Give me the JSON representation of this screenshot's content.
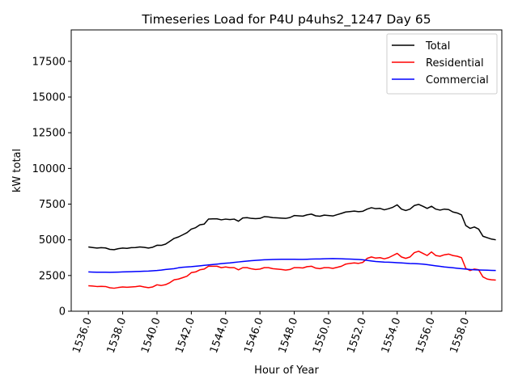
{
  "chart_data": {
    "type": "line",
    "title": "Timeseries Load for P4U p4uhs2_1247  Day 65",
    "xlabel": "Hour of Year",
    "ylabel": "kW total",
    "xlim": [
      1535.0,
      1560.1
    ],
    "ylim": [
      0,
      19700
    ],
    "x_ticks": [
      1536,
      1538,
      1540,
      1542,
      1544,
      1546,
      1548,
      1550,
      1552,
      1554,
      1556,
      1558
    ],
    "x_tick_labels": [
      "1536.0",
      "1538.0",
      "1540.0",
      "1542.0",
      "1544.0",
      "1546.0",
      "1548.0",
      "1550.0",
      "1552.0",
      "1554.0",
      "1556.0",
      "1558.0"
    ],
    "y_ticks": [
      0,
      2500,
      5000,
      7500,
      10000,
      12500,
      15000,
      17500
    ],
    "y_tick_labels": [
      "0",
      "2500",
      "5000",
      "7500",
      "10000",
      "12500",
      "15000",
      "17500"
    ],
    "legend_position": "top-right",
    "x_start": 1536.0,
    "x_step": 0.25,
    "series": [
      {
        "name": "Total",
        "color": "#000000",
        "values": [
          4500,
          4460,
          4420,
          4450,
          4430,
          4330,
          4310,
          4380,
          4420,
          4400,
          4450,
          4460,
          4500,
          4470,
          4420,
          4480,
          4620,
          4610,
          4700,
          4900,
          5100,
          5200,
          5350,
          5500,
          5750,
          5850,
          6050,
          6100,
          6450,
          6470,
          6470,
          6400,
          6450,
          6420,
          6450,
          6300,
          6530,
          6550,
          6500,
          6480,
          6500,
          6620,
          6600,
          6550,
          6540,
          6520,
          6500,
          6560,
          6700,
          6680,
          6660,
          6750,
          6800,
          6680,
          6650,
          6730,
          6700,
          6670,
          6760,
          6850,
          6950,
          6980,
          7010,
          6970,
          7000,
          7150,
          7250,
          7180,
          7200,
          7100,
          7180,
          7280,
          7450,
          7150,
          7050,
          7150,
          7400,
          7480,
          7350,
          7200,
          7350,
          7150,
          7080,
          7150,
          7120,
          6950,
          6880,
          6750,
          6000,
          5800,
          5900,
          5750,
          5250,
          5150,
          5050,
          5000
        ]
      },
      {
        "name": "Residential",
        "color": "#ff0000",
        "values": [
          1780,
          1760,
          1730,
          1740,
          1730,
          1640,
          1610,
          1660,
          1700,
          1680,
          1700,
          1720,
          1760,
          1700,
          1650,
          1700,
          1850,
          1800,
          1860,
          2000,
          2200,
          2250,
          2350,
          2450,
          2700,
          2750,
          2900,
          2950,
          3150,
          3150,
          3150,
          3050,
          3100,
          3050,
          3050,
          2900,
          3050,
          3050,
          2970,
          2920,
          2950,
          3050,
          3050,
          2980,
          2950,
          2920,
          2880,
          2920,
          3050,
          3050,
          3030,
          3120,
          3150,
          3020,
          2980,
          3050,
          3050,
          3000,
          3070,
          3150,
          3300,
          3350,
          3380,
          3350,
          3420,
          3700,
          3800,
          3720,
          3750,
          3670,
          3750,
          3900,
          4050,
          3800,
          3700,
          3800,
          4100,
          4200,
          4050,
          3900,
          4150,
          3900,
          3850,
          3950,
          4000,
          3900,
          3850,
          3750,
          3000,
          2850,
          2950,
          2900,
          2400,
          2250,
          2200,
          2180
        ]
      },
      {
        "name": "Commercial",
        "color": "#0000ff",
        "values": [
          2750,
          2740,
          2730,
          2735,
          2730,
          2725,
          2730,
          2740,
          2750,
          2760,
          2770,
          2780,
          2790,
          2800,
          2810,
          2830,
          2850,
          2880,
          2920,
          2950,
          2980,
          3040,
          3080,
          3100,
          3120,
          3150,
          3180,
          3210,
          3240,
          3270,
          3300,
          3330,
          3360,
          3380,
          3420,
          3450,
          3480,
          3510,
          3540,
          3560,
          3580,
          3600,
          3610,
          3620,
          3630,
          3640,
          3640,
          3640,
          3640,
          3630,
          3630,
          3640,
          3650,
          3660,
          3660,
          3670,
          3680,
          3690,
          3680,
          3670,
          3660,
          3650,
          3640,
          3620,
          3600,
          3560,
          3520,
          3480,
          3460,
          3440,
          3430,
          3420,
          3400,
          3380,
          3360,
          3340,
          3330,
          3320,
          3300,
          3260,
          3220,
          3180,
          3140,
          3100,
          3070,
          3040,
          3010,
          2980,
          2950,
          2920,
          2900,
          2890,
          2880,
          2870,
          2860,
          2850
        ]
      }
    ]
  }
}
